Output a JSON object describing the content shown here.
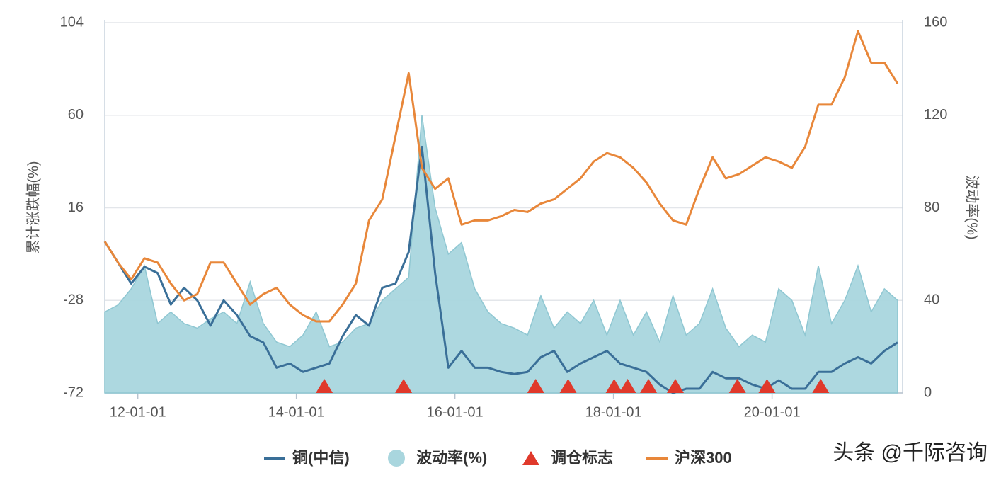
{
  "chart_data": {
    "type": "line",
    "y_label": "累计涨跌幅(%)",
    "y2_label": "波动率(%)",
    "ylim": [
      -72,
      104
    ],
    "yticks": [
      -72,
      -28,
      16,
      60,
      104
    ],
    "y2lim": [
      0,
      160
    ],
    "y2ticks": [
      0,
      40,
      80,
      120,
      160
    ],
    "xlim": [
      "11-08-01",
      "21-08-24"
    ],
    "xticks": [
      "12-01-01",
      "14-01-01",
      "16-01-01",
      "18-01-01",
      "20-01-01"
    ],
    "grid": true,
    "x": [
      "11-08-01",
      "11-10-01",
      "11-12-01",
      "12-02-01",
      "12-04-01",
      "12-06-01",
      "12-08-01",
      "12-10-01",
      "12-12-01",
      "13-02-01",
      "13-04-01",
      "13-06-01",
      "13-08-01",
      "13-10-01",
      "13-12-01",
      "14-02-01",
      "14-04-01",
      "14-06-01",
      "14-08-01",
      "14-10-01",
      "14-12-01",
      "15-02-01",
      "15-04-01",
      "15-06-01",
      "15-08-01",
      "15-10-01",
      "15-12-01",
      "16-02-01",
      "16-04-01",
      "16-06-01",
      "16-08-01",
      "16-10-01",
      "16-12-01",
      "17-02-01",
      "17-04-01",
      "17-06-01",
      "17-08-01",
      "17-10-01",
      "17-12-01",
      "18-02-01",
      "18-04-01",
      "18-06-01",
      "18-08-01",
      "18-10-01",
      "18-12-01",
      "19-02-01",
      "19-04-01",
      "19-06-01",
      "19-08-01",
      "19-10-01",
      "19-12-01",
      "20-02-01",
      "20-04-01",
      "20-06-01",
      "20-08-01",
      "20-10-01",
      "20-12-01",
      "21-02-01",
      "21-04-01",
      "21-06-01",
      "21-08-01"
    ],
    "series": [
      {
        "name": "铜(中信)",
        "color": "#3a6f98",
        "type": "line",
        "values": [
          0,
          -10,
          -20,
          -12,
          -15,
          -30,
          -22,
          -28,
          -40,
          -28,
          -35,
          -45,
          -48,
          -60,
          -58,
          -62,
          -60,
          -58,
          -45,
          -35,
          -40,
          -22,
          -20,
          -5,
          45,
          -15,
          -60,
          -52,
          -60,
          -60,
          -62,
          -63,
          -62,
          -55,
          -52,
          -62,
          -58,
          -55,
          -52,
          -58,
          -60,
          -62,
          -68,
          -72,
          -70,
          -70,
          -62,
          -65,
          -65,
          -68,
          -70,
          -66,
          -70,
          -70,
          -62,
          -62,
          -58,
          -55,
          -58,
          -52,
          -48
        ]
      },
      {
        "name": "波动率(%)",
        "color": "#a9d6de",
        "type": "area",
        "axis": "y2",
        "values": [
          35,
          38,
          45,
          55,
          30,
          35,
          30,
          28,
          32,
          35,
          30,
          48,
          30,
          22,
          20,
          25,
          35,
          20,
          22,
          28,
          30,
          40,
          45,
          50,
          120,
          80,
          60,
          65,
          45,
          35,
          30,
          28,
          25,
          42,
          28,
          35,
          30,
          40,
          25,
          40,
          25,
          35,
          22,
          42,
          25,
          30,
          45,
          28,
          20,
          25,
          22,
          45,
          40,
          25,
          55,
          30,
          40,
          55,
          35,
          45,
          40
        ]
      },
      {
        "name": "沪深300",
        "color": "#e8873a",
        "type": "line",
        "values": [
          0,
          -10,
          -18,
          -8,
          -10,
          -20,
          -28,
          -25,
          -10,
          -10,
          -20,
          -30,
          -25,
          -22,
          -30,
          -35,
          -38,
          -38,
          -30,
          -20,
          10,
          20,
          50,
          80,
          35,
          25,
          30,
          8,
          10,
          10,
          12,
          15,
          14,
          18,
          20,
          25,
          30,
          38,
          42,
          40,
          35,
          28,
          18,
          10,
          8,
          25,
          40,
          30,
          32,
          36,
          40,
          38,
          35,
          45,
          65,
          65,
          78,
          100,
          85,
          85,
          75
        ]
      }
    ],
    "markers": {
      "name": "调仓标志",
      "color": "#e0392b",
      "x": [
        "14-05-08",
        "15-05-08",
        "17-01-08",
        "17-06-05",
        "18-01-04",
        "18-03-05",
        "18-06-10",
        "18-10-12",
        "19-07-24",
        "19-12-08",
        "20-08-12"
      ]
    },
    "watermark": "头条 @千际咨询"
  }
}
